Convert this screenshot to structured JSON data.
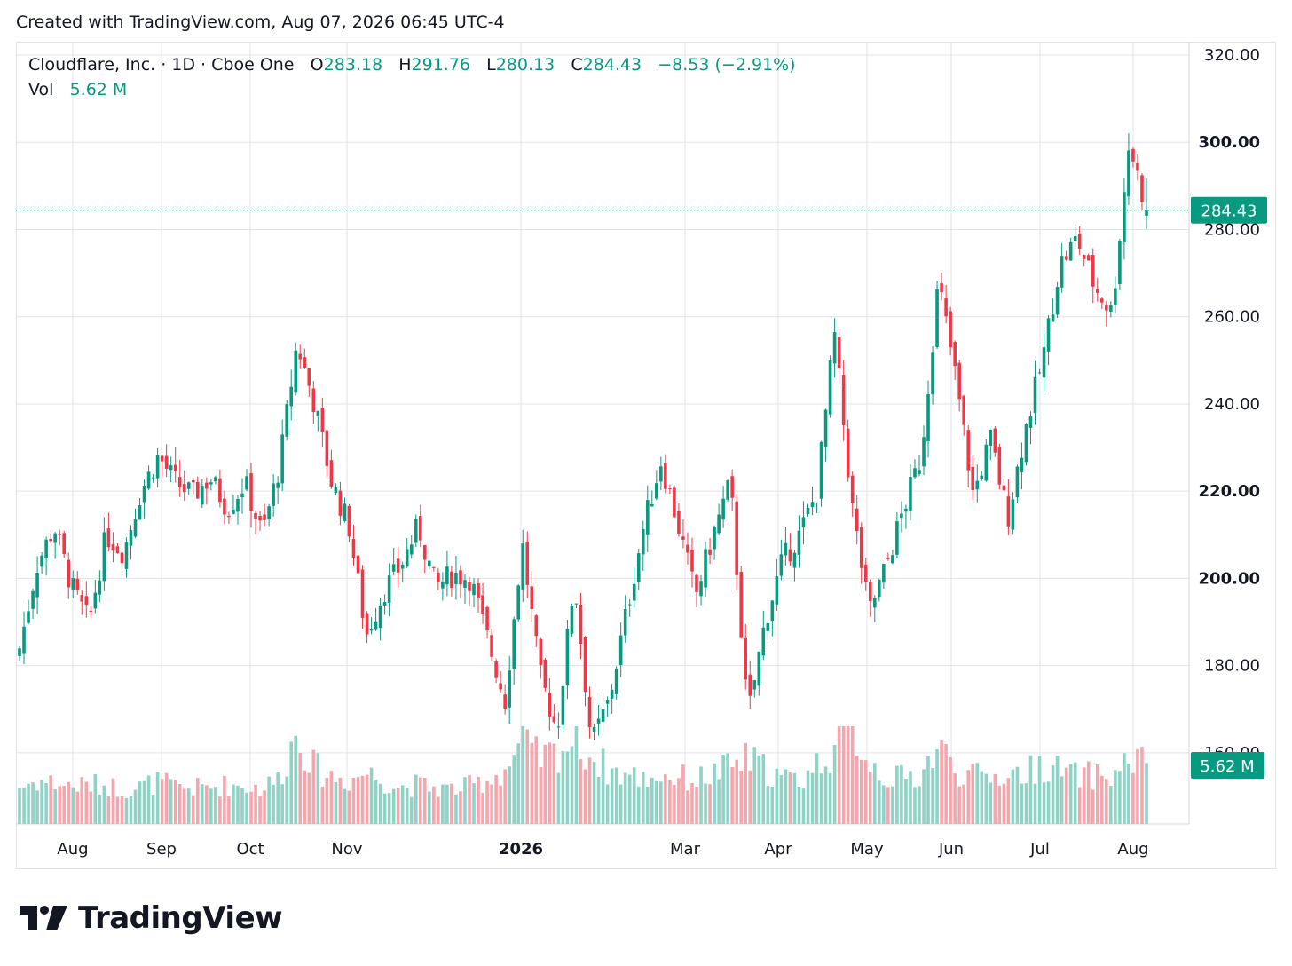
{
  "header": {
    "created_with": "Created with TradingView.com, Aug 07, 2026 06:45 UTC-4"
  },
  "legend": {
    "symbol": "Cloudflare, Inc. · 1D · Cboe One",
    "open_label": "O",
    "open": "283.18",
    "high_label": "H",
    "high": "291.76",
    "low_label": "L",
    "low": "280.13",
    "close_label": "C",
    "close": "284.43",
    "change": "−8.53 (−2.91%)",
    "vol_label": "Vol",
    "vol": "5.62 M"
  },
  "price_axis": {
    "ticks": [
      "320.00",
      "300.00",
      "280.00",
      "260.00",
      "240.00",
      "220.00",
      "200.00",
      "180.00",
      "160.00"
    ],
    "last_price_label": "284.43",
    "volume_label": "5.62 M"
  },
  "time_axis": {
    "labels": [
      "Aug",
      "Sep",
      "Oct",
      "Nov",
      "2026",
      "Mar",
      "Apr",
      "May",
      "Jun",
      "Jul",
      "Aug"
    ]
  },
  "colors": {
    "up": "#089981",
    "down": "#f23645",
    "up_volume": "#8fd3c6",
    "down_volume": "#f5a6ad",
    "grid": "#e0e3eb"
  },
  "footer": {
    "brand": "TradingView",
    "logo_icon": "tradingview-logo-icon"
  },
  "chart_data": {
    "type": "candlestick",
    "title": "Cloudflare, Inc. · 1D · Cboe One",
    "ylim": [
      150,
      320
    ],
    "y_ticks": [
      320,
      300,
      280,
      260,
      240,
      220,
      200,
      180,
      160
    ],
    "x_labels": [
      "Aug",
      "Sep",
      "Oct",
      "Nov",
      "2026",
      "Mar",
      "Apr",
      "May",
      "Jun",
      "Jul",
      "Aug"
    ],
    "last": {
      "open": 283.18,
      "high": 291.76,
      "low": 280.13,
      "close": 284.43,
      "change": -8.53,
      "change_pct": -2.91,
      "volume_millions": 5.62
    },
    "series": [
      {
        "name": "Close",
        "points": [
          [
            "Jul 2025",
            184
          ],
          [
            "Aug 2025",
            203
          ],
          [
            "Aug 2025",
            212
          ],
          [
            "Aug 2025",
            198
          ],
          [
            "Aug 2025",
            190
          ],
          [
            "Sep 2025",
            210
          ],
          [
            "Sep 2025",
            206
          ],
          [
            "Sep 2025",
            220
          ],
          [
            "Sep 2025",
            228
          ],
          [
            "Sep 2025",
            222
          ],
          [
            "Oct 2025",
            219
          ],
          [
            "Oct 2025",
            223
          ],
          [
            "Oct 2025",
            216
          ],
          [
            "Oct 2025",
            222
          ],
          [
            "Oct 2025",
            210
          ],
          [
            "Oct 2025",
            226
          ],
          [
            "Nov 2025",
            254
          ],
          [
            "Nov 2025",
            240
          ],
          [
            "Nov 2025",
            222
          ],
          [
            "Nov 2025",
            212
          ],
          [
            "Nov 2025",
            187
          ],
          [
            "Nov 2025",
            197
          ],
          [
            "Dec 2025",
            203
          ],
          [
            "Dec 2025",
            212
          ],
          [
            "Dec 2025",
            198
          ],
          [
            "Dec 2025",
            201
          ],
          [
            "Dec 2025",
            200
          ],
          [
            "Jan 2026",
            186
          ],
          [
            "Jan 2026",
            172
          ],
          [
            "Jan 2026",
            208
          ],
          [
            "Jan 2026",
            178
          ],
          [
            "Feb 2026",
            165
          ],
          [
            "Feb 2026",
            200
          ],
          [
            "Feb 2026",
            162
          ],
          [
            "Feb 2026",
            172
          ],
          [
            "Feb 2026",
            192
          ],
          [
            "Mar 2026",
            212
          ],
          [
            "Mar 2026",
            227
          ],
          [
            "Mar 2026",
            212
          ],
          [
            "Mar 2026",
            196
          ],
          [
            "Apr 2026",
            210
          ],
          [
            "Apr 2026",
            222
          ],
          [
            "Apr 2026",
            168
          ],
          [
            "Apr 2026",
            190
          ],
          [
            "Apr 2026",
            204
          ],
          [
            "Apr 2026",
            210
          ],
          [
            "May 2026",
            220
          ],
          [
            "May 2026",
            256
          ],
          [
            "May 2026",
            217
          ],
          [
            "May 2026",
            192
          ],
          [
            "May 2026",
            203
          ],
          [
            "May 2026",
            216
          ],
          [
            "Jun 2026",
            228
          ],
          [
            "Jun 2026",
            268
          ],
          [
            "Jun 2026",
            246
          ],
          [
            "Jun 2026",
            219
          ],
          [
            "Jun 2026",
            232
          ],
          [
            "Jun 2026",
            214
          ],
          [
            "Jul 2026",
            234
          ],
          [
            "Jul 2026",
            250
          ],
          [
            "Jul 2026",
            272
          ],
          [
            "Jul 2026",
            278
          ],
          [
            "Jul 2026",
            267
          ],
          [
            "Jul 2026",
            261
          ],
          [
            "Aug 2026",
            300
          ],
          [
            "Aug 2026",
            284.43
          ]
        ]
      },
      {
        "name": "Vol",
        "points": [
          [
            "Jul 2025",
            3.4
          ],
          [
            "Aug 2025",
            4.0
          ],
          [
            "Aug 2025",
            3.8
          ],
          [
            "Aug 2025",
            3.5
          ],
          [
            "Aug 2025",
            3.6
          ],
          [
            "Sep 2025",
            3.6
          ],
          [
            "Sep 2025",
            3.2
          ],
          [
            "Sep 2025",
            3.4
          ],
          [
            "Sep 2025",
            3.9
          ],
          [
            "Sep 2025",
            3.4
          ],
          [
            "Oct 2025",
            3.3
          ],
          [
            "Oct 2025",
            3.4
          ],
          [
            "Oct 2025",
            3.6
          ],
          [
            "Oct 2025",
            3.5
          ],
          [
            "Oct 2025",
            3.3
          ],
          [
            "Oct 2025",
            4.2
          ],
          [
            "Nov 2025",
            8.5
          ],
          [
            "Nov 2025",
            5.2
          ],
          [
            "Nov 2025",
            4.4
          ],
          [
            "Nov 2025",
            4.0
          ],
          [
            "Nov 2025",
            4.8
          ],
          [
            "Nov 2025",
            4.0
          ],
          [
            "Dec 2025",
            3.4
          ],
          [
            "Dec 2025",
            3.6
          ],
          [
            "Dec 2025",
            3.3
          ],
          [
            "Dec 2025",
            3.2
          ],
          [
            "Dec 2025",
            3.5
          ],
          [
            "Jan 2026",
            4.1
          ],
          [
            "Jan 2026",
            5.0
          ],
          [
            "Jan 2026",
            7.4
          ],
          [
            "Jan 2026",
            6.0
          ],
          [
            "Feb 2026",
            6.6
          ],
          [
            "Feb 2026",
            7.8
          ],
          [
            "Feb 2026",
            6.2
          ],
          [
            "Feb 2026",
            5.0
          ],
          [
            "Feb 2026",
            4.5
          ],
          [
            "Mar 2026",
            4.2
          ],
          [
            "Mar 2026",
            4.5
          ],
          [
            "Mar 2026",
            4.3
          ],
          [
            "Mar 2026",
            4.1
          ],
          [
            "Apr 2026",
            4.6
          ],
          [
            "Apr 2026",
            5.3
          ],
          [
            "Apr 2026",
            6.0
          ],
          [
            "Apr 2026",
            5.1
          ],
          [
            "Apr 2026",
            4.2
          ],
          [
            "Apr 2026",
            4.0
          ],
          [
            "May 2026",
            5.5
          ],
          [
            "May 2026",
            7.0
          ],
          [
            "May 2026",
            9.0
          ],
          [
            "May 2026",
            5.8
          ],
          [
            "May 2026",
            4.3
          ],
          [
            "May 2026",
            4.2
          ],
          [
            "Jun 2026",
            4.6
          ],
          [
            "Jun 2026",
            7.2
          ],
          [
            "Jun 2026",
            5.0
          ],
          [
            "Jun 2026",
            4.4
          ],
          [
            "Jun 2026",
            4.3
          ],
          [
            "Jun 2026",
            4.6
          ],
          [
            "Jul 2026",
            4.7
          ],
          [
            "Jul 2026",
            5.5
          ],
          [
            "Jul 2026",
            4.9
          ],
          [
            "Jul 2026",
            4.4
          ],
          [
            "Jul 2026",
            4.5
          ],
          [
            "Jul 2026",
            4.3
          ],
          [
            "Aug 2026",
            6.0
          ],
          [
            "Aug 2026",
            5.62
          ]
        ]
      }
    ]
  }
}
